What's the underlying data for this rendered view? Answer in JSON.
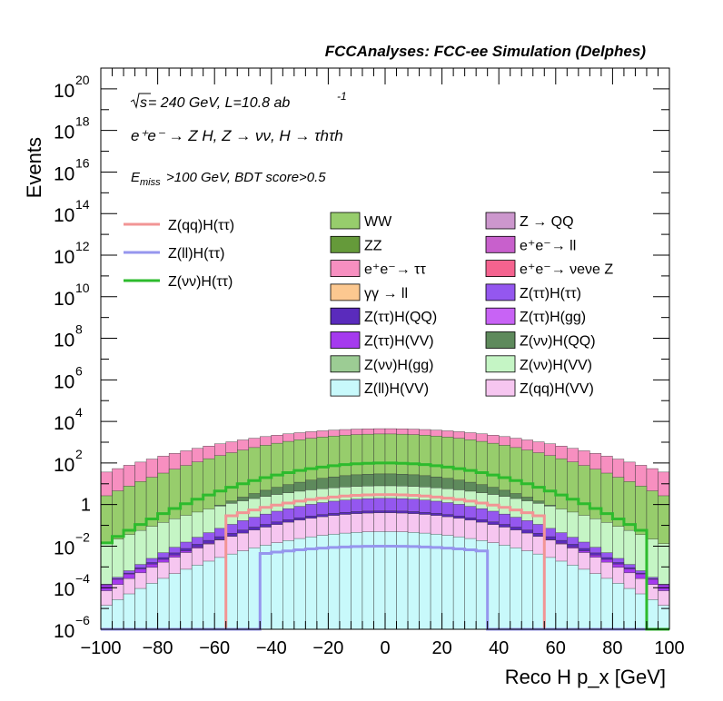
{
  "chart_data": {
    "type": "histogram-stacked",
    "title": "FCCAnalyses: FCC-ee Simulation (Delphes)",
    "xlabel": "Reco H p_x [GeV]",
    "ylabel": "Events",
    "xlim": [
      -100,
      100
    ],
    "ylim": [
      1e-06,
      1e+21
    ],
    "yscale": "log",
    "x_ticks": [
      "−100",
      "−80",
      "−60",
      "−40",
      "−20",
      "0",
      "20",
      "40",
      "60",
      "80",
      "100"
    ],
    "y_ticks": [
      {
        "base": "10",
        "exp": "−6"
      },
      {
        "base": "10",
        "exp": "−4"
      },
      {
        "base": "10",
        "exp": "−2"
      },
      {
        "base": "1",
        "exp": ""
      },
      {
        "base": "10",
        "exp": "2"
      },
      {
        "base": "10",
        "exp": "4"
      },
      {
        "base": "10",
        "exp": "6"
      },
      {
        "base": "10",
        "exp": "8"
      },
      {
        "base": "10",
        "exp": "10"
      },
      {
        "base": "10",
        "exp": "12"
      },
      {
        "base": "10",
        "exp": "14"
      },
      {
        "base": "10",
        "exp": "16"
      },
      {
        "base": "10",
        "exp": "18"
      },
      {
        "base": "10",
        "exp": "20"
      }
    ],
    "annotations": {
      "sqrt_s": "s",
      "energy_lumi": " = 240 GeV, L=10.8 ab",
      "lumi_exp": "-1",
      "process": "e⁺e⁻ → Z H, Z → νν, H → τhτh",
      "cut_prefix": "E",
      "cut_sub": "miss",
      "cut_rest": ">100 GeV, BDT score>0.5"
    },
    "bins": 50,
    "stack_envelopes": [
      {
        "name": "ee→ννZ",
        "color": "#f5638f",
        "peak": 7,
        "tail": 0.05
      },
      {
        "name": "ee→ττ",
        "color": "#f78fc0",
        "peak": 4500,
        "tail": 30
      },
      {
        "name": "ZZ",
        "color": "#659a3a",
        "peak": 1200,
        "tail": 0.5
      },
      {
        "name": "WW",
        "color": "#97cd6c",
        "peak": 2500,
        "tail": 2
      },
      {
        "name": "Z(νν)H(QQ)",
        "color": "#5e8a5c",
        "peak": 30,
        "tail": 0.001
      },
      {
        "name": "Z(νν)H(VV)",
        "color": "#c5f5c5",
        "peak": 8,
        "tail": 0.01
      },
      {
        "name": "Z(ττ)H(ττ)",
        "color": "#9457ef",
        "peak": 2,
        "tail": 0.0001
      },
      {
        "name": "Z(ττ)H(QQ)",
        "color": "#5a2bbc",
        "peak": 0.5,
        "tail": 0.0001
      },
      {
        "name": "Z(ττ)H(VV)",
        "color": "#a53aee",
        "peak": 0.3,
        "tail": 0.0001
      },
      {
        "name": "Z(qq)H(VV)",
        "color": "#f6c6f0",
        "peak": 0.4,
        "tail": 5e-05
      },
      {
        "name": "Z(ll)H(VV)",
        "color": "#c8f9fb",
        "peak": 0.05,
        "tail": 1e-05
      }
    ],
    "signal_lines": [
      {
        "name": "Z(qq)H(ττ)",
        "color": "#f29595",
        "range": [
          -55,
          55
        ],
        "peak": 3,
        "tail": 0.001
      },
      {
        "name": "Z(ll)H(ττ)",
        "color": "#9696ee",
        "range": [
          -42,
          37
        ],
        "peak": 0.01,
        "tail": 0.0001
      },
      {
        "name": "Z(νν)H(ττ)",
        "color": "#2dbb2d",
        "range": [
          -100,
          92
        ],
        "peak": 100,
        "tail": 0.01
      }
    ],
    "legend_left": [
      {
        "label": "Z(qq)H(ττ)",
        "color": "#f29595"
      },
      {
        "label": "Z(ll)H(ττ)",
        "color": "#9696ee"
      },
      {
        "label": "Z(νν)H(ττ)",
        "color": "#2dbb2d"
      }
    ],
    "legend_mid": [
      {
        "label": "WW",
        "color": "#97cd6c"
      },
      {
        "label": "ZZ",
        "color": "#659a3a"
      },
      {
        "label": "e⁺e⁻→ ττ",
        "color": "#f78fc0"
      },
      {
        "label": "γγ → ll",
        "color": "#fcc890"
      },
      {
        "label": "Z(ττ)H(QQ)",
        "color": "#5a2bbc"
      },
      {
        "label": "Z(ττ)H(VV)",
        "color": "#a53aee"
      },
      {
        "label": "Z(νν)H(gg)",
        "color": "#9ccc94"
      },
      {
        "label": "Z(ll)H(VV)",
        "color": "#c8f9fb"
      }
    ],
    "legend_right": [
      {
        "label": "Z → QQ",
        "color": "#cc97cd"
      },
      {
        "label": "e⁺e⁻→ ll",
        "color": "#c860cc"
      },
      {
        "label": "e⁺e⁻→ νeνe Z",
        "color": "#f5638f"
      },
      {
        "label": "Z(ττ)H(ττ)",
        "color": "#9457ef"
      },
      {
        "label": "Z(ττ)H(gg)",
        "color": "#c863f5"
      },
      {
        "label": "Z(νν)H(QQ)",
        "color": "#5e8a5c"
      },
      {
        "label": "Z(νν)H(VV)",
        "color": "#c5f5c5"
      },
      {
        "label": "Z(qq)H(VV)",
        "color": "#f6c6f0"
      }
    ]
  }
}
